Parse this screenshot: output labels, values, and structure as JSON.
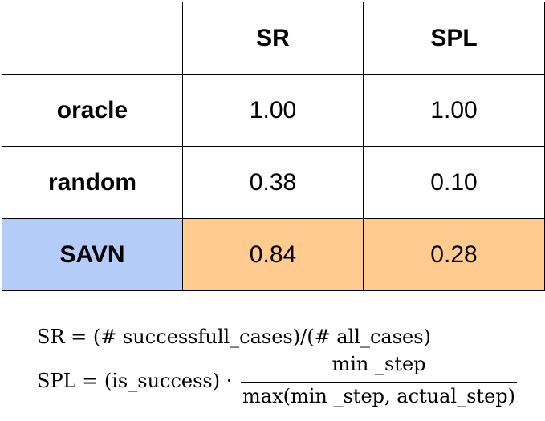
{
  "chart_data": {
    "type": "table",
    "columns": [
      "",
      "SR",
      "SPL"
    ],
    "rows": [
      {
        "label": "oracle",
        "SR": "1.00",
        "SPL": "1.00"
      },
      {
        "label": "random",
        "SR": "0.38",
        "SPL": "0.10"
      },
      {
        "label": "SAVN",
        "SR": "0.84",
        "SPL": "0.28"
      }
    ]
  },
  "colors": {
    "highlight_label_bg": "#b4cdf8",
    "highlight_value_bg": "#ffcb8f",
    "border": "#000000"
  },
  "formulas": {
    "sr": "SR = (# successfull_cases)/(# all_cases)",
    "spl_prefix": "SPL = (is_success) ·",
    "spl_numerator": "min _step",
    "spl_denominator": "max(min _step, actual_step)"
  }
}
